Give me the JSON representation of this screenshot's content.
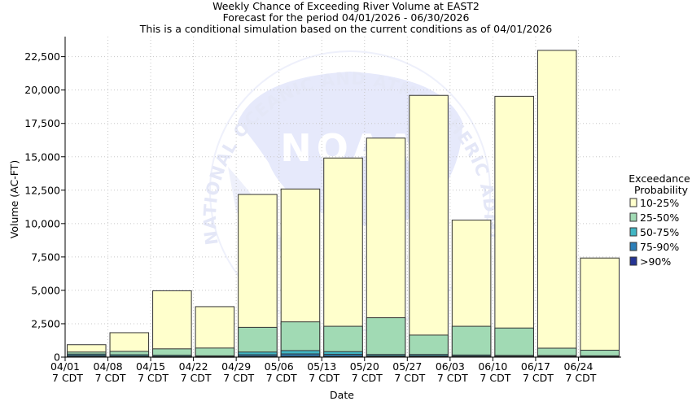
{
  "chart_data": {
    "type": "bar",
    "stacked": true,
    "title": "Weekly Chance of Exceeding River Volume at EAST2",
    "subtitle_1": "Forecast for the period 04/01/2026 - 06/30/2026",
    "subtitle_2": "This is a conditional simulation based on the current conditions as of 04/01/2026",
    "xlabel": "Date",
    "ylabel": "Volume (AC-FT)",
    "ylim": [
      0,
      24000
    ],
    "yticks": [
      0,
      2500,
      5000,
      7500,
      10000,
      12500,
      15000,
      17500,
      20000,
      22500
    ],
    "ytick_labels": [
      "0",
      "2,500",
      "5,000",
      "7,500",
      "10,000",
      "12,500",
      "15,000",
      "17,500",
      "20,000",
      "22,500"
    ],
    "grid": true,
    "watermark": "NOAA",
    "watermark_text": "NATIONAL OCEANIC AND ATMOSPHERIC ADMINISTRATION",
    "categories": [
      {
        "date": "04/01",
        "time": "7 CDT"
      },
      {
        "date": "04/08",
        "time": "7 CDT"
      },
      {
        "date": "04/15",
        "time": "7 CDT"
      },
      {
        "date": "04/22",
        "time": "7 CDT"
      },
      {
        "date": "04/29",
        "time": "7 CDT"
      },
      {
        "date": "05/06",
        "time": "7 CDT"
      },
      {
        "date": "05/13",
        "time": "7 CDT"
      },
      {
        "date": "05/20",
        "time": "7 CDT"
      },
      {
        "date": "05/27",
        "time": "7 CDT"
      },
      {
        "date": "06/03",
        "time": "7 CDT"
      },
      {
        "date": "06/10",
        "time": "7 CDT"
      },
      {
        "date": "06/17",
        "time": "7 CDT"
      },
      {
        "date": "06/24",
        "time": "7 CDT"
      }
    ],
    "legend": {
      "title_1": "Exceedance",
      "title_2": "Probability",
      "position": "right"
    },
    "series": [
      {
        "name": "10-25%",
        "color": "#ffffcc",
        "values": [
          550,
          1400,
          4350,
          3100,
          9950,
          9950,
          12600,
          13450,
          17950,
          7950,
          17350,
          22300,
          6900
        ]
      },
      {
        "name": "25-50%",
        "color": "#a1dab4",
        "values": [
          150,
          250,
          480,
          580,
          1850,
          2150,
          1900,
          2750,
          1450,
          2150,
          2050,
          550,
          420
        ]
      },
      {
        "name": "50-75%",
        "color": "#41b6c4",
        "values": [
          100,
          100,
          80,
          50,
          200,
          250,
          200,
          100,
          100,
          80,
          60,
          50,
          50
        ]
      },
      {
        "name": "75-90%",
        "color": "#2c7fb8",
        "values": [
          80,
          50,
          40,
          30,
          120,
          180,
          150,
          60,
          60,
          50,
          40,
          40,
          30
        ]
      },
      {
        "name": ">90%",
        "color": "#253494",
        "values": [
          50,
          30,
          20,
          20,
          60,
          60,
          60,
          40,
          40,
          30,
          30,
          30,
          20
        ]
      }
    ]
  }
}
